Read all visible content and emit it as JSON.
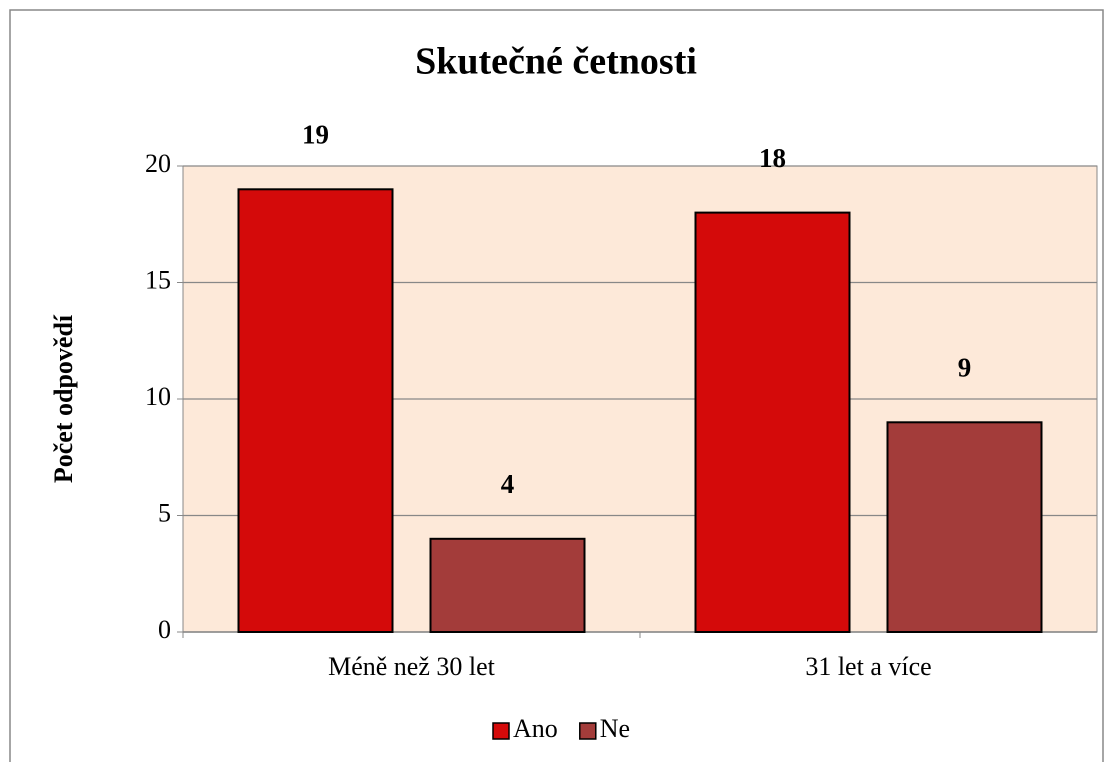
{
  "chart_data": {
    "type": "bar",
    "title": "Skutečné četnosti",
    "y_label": "Počet odpovědí",
    "categories": [
      "Méně než 30 let",
      "31 let a více"
    ],
    "series": [
      {
        "name": "Ano",
        "color": "#d40a0a",
        "values": [
          19,
          18
        ]
      },
      {
        "name": "Ne",
        "color": "#a33c3a",
        "values": [
          4,
          9
        ]
      }
    ],
    "ylim": [
      0,
      20
    ],
    "yticks": [
      0,
      5,
      10,
      15,
      20
    ],
    "grid": true,
    "legend": "bottom",
    "plot_background": "#fde9d9"
  }
}
